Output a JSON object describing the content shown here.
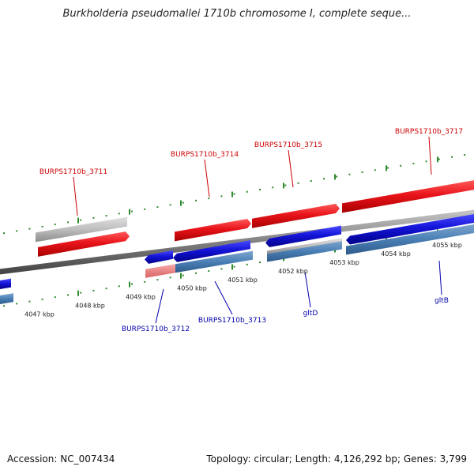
{
  "title": "Burkholderia pseudomallei 1710b chromosome I, complete seque...",
  "footer": {
    "accession": "Accession: NC_007434",
    "summary": "Topology: circular; Length: 4,126,292 bp; Genes: 3,799"
  },
  "ruler_labels": [
    "4047 kbp",
    "4048 kbp",
    "4049 kbp",
    "4050 kbp",
    "4051 kbp",
    "4052 kbp",
    "4053 kbp",
    "4054 kbp",
    "4055 kbp"
  ],
  "upper_gene_labels": [
    "BURPS1710b_3711",
    "BURPS1710b_3714",
    "BURPS1710b_3715",
    "BURPS1710b_3717"
  ],
  "lower_gene_labels": [
    "BURPS1710b_3712",
    "BURPS1710b_3713",
    "gltD",
    "gltB"
  ],
  "colors": {
    "forward_gene": "#e8141a",
    "reverse_gene": "#1414d8",
    "cds_blue": "#4a7fb5",
    "cds_gray": "#bdbdbd",
    "cds_pink": "#f08080",
    "backbone": "#808080",
    "ticks": "#2e8b2e",
    "upper_label": "#cc0000",
    "lower_label": "#0000aa"
  }
}
